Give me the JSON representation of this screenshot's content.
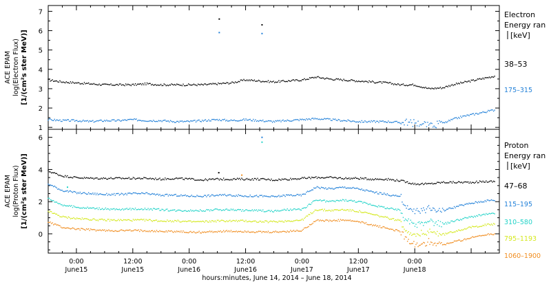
{
  "chart_data": [
    {
      "type": "scatter",
      "name": "electron-panel",
      "ylabel_lines": [
        "ACE EPAM",
        "log(Electron Flux)",
        "[1/(cm²s ster MeV)]"
      ],
      "ylim": [
        0.9,
        7.3
      ],
      "yticks": [
        1,
        2,
        3,
        4,
        5,
        6,
        7
      ],
      "xlim": [
        0,
        96
      ],
      "legend_title": [
        "Electron",
        "Energy ran",
        "[keV]"
      ],
      "series": [
        {
          "name": "38–53",
          "color": "#000000",
          "x": [
            0,
            3,
            6,
            9,
            12,
            15,
            18,
            21,
            24,
            27,
            30,
            33,
            36,
            39,
            42,
            45,
            48,
            51,
            54,
            57,
            60,
            63,
            66,
            69,
            72,
            75,
            78,
            81,
            84,
            86,
            88,
            90,
            92,
            94,
            95
          ],
          "values": [
            3.45,
            3.35,
            3.3,
            3.25,
            3.2,
            3.2,
            3.2,
            3.25,
            3.2,
            3.2,
            3.2,
            3.2,
            3.25,
            3.3,
            3.45,
            3.4,
            3.35,
            3.4,
            3.45,
            3.6,
            3.5,
            3.45,
            3.4,
            3.35,
            3.3,
            3.2,
            3.2,
            3.0,
            3.05,
            3.2,
            3.3,
            3.4,
            3.5,
            3.6,
            3.65
          ]
        },
        {
          "name": "175–315",
          "color": "#1f7fd8",
          "x": [
            0,
            3,
            6,
            9,
            12,
            15,
            18,
            21,
            24,
            27,
            30,
            33,
            36,
            39,
            42,
            45,
            48,
            51,
            54,
            57,
            60,
            63,
            66,
            69,
            72,
            75,
            78,
            81,
            84,
            86,
            88,
            90,
            92,
            94,
            95
          ],
          "values": [
            1.4,
            1.35,
            1.35,
            1.3,
            1.35,
            1.35,
            1.4,
            1.35,
            1.35,
            1.3,
            1.3,
            1.35,
            1.4,
            1.35,
            1.4,
            1.35,
            1.3,
            1.35,
            1.4,
            1.45,
            1.4,
            1.35,
            1.3,
            1.3,
            1.3,
            1.25,
            1.25,
            1.1,
            1.2,
            1.4,
            1.55,
            1.65,
            1.75,
            1.85,
            1.9
          ]
        }
      ],
      "outliers": [
        {
          "x": 36.4,
          "y": 6.6,
          "color": "#000000"
        },
        {
          "x": 36.4,
          "y": 5.9,
          "color": "#1f7fd8"
        },
        {
          "x": 45.5,
          "y": 6.3,
          "color": "#000000"
        },
        {
          "x": 45.5,
          "y": 5.85,
          "color": "#1f7fd8"
        }
      ]
    },
    {
      "type": "scatter",
      "name": "proton-panel",
      "ylabel_lines": [
        "ACE EPAM",
        "log(Proton Flux)",
        "[1/(cm²s ster MeV)]"
      ],
      "ylim": [
        -1.2,
        6.5
      ],
      "yticks": [
        0,
        2,
        4,
        6
      ],
      "xlim": [
        0,
        96
      ],
      "legend_title": [
        "Proton",
        "Energy ran",
        "[keV]"
      ],
      "series": [
        {
          "name": "47–68",
          "color": "#000000",
          "x": [
            0,
            3,
            6,
            9,
            12,
            15,
            18,
            21,
            24,
            27,
            30,
            33,
            36,
            39,
            42,
            45,
            48,
            51,
            54,
            57,
            60,
            63,
            66,
            69,
            72,
            75,
            78,
            81,
            84,
            87,
            90,
            93,
            95
          ],
          "values": [
            3.9,
            3.6,
            3.5,
            3.45,
            3.45,
            3.45,
            3.45,
            3.45,
            3.4,
            3.45,
            3.4,
            3.35,
            3.4,
            3.4,
            3.4,
            3.4,
            3.35,
            3.4,
            3.45,
            3.5,
            3.5,
            3.45,
            3.45,
            3.4,
            3.4,
            3.3,
            3.1,
            3.1,
            3.2,
            3.2,
            3.2,
            3.25,
            3.25
          ]
        },
        {
          "name": "115–195",
          "color": "#1f7fd8",
          "x": [
            0,
            3,
            6,
            9,
            12,
            15,
            18,
            21,
            24,
            27,
            30,
            33,
            36,
            39,
            42,
            45,
            48,
            51,
            54,
            57,
            60,
            63,
            66,
            69,
            72,
            75,
            76,
            78,
            81,
            84,
            87,
            90,
            93,
            95
          ],
          "values": [
            3.1,
            2.7,
            2.55,
            2.5,
            2.45,
            2.45,
            2.5,
            2.5,
            2.4,
            2.4,
            2.35,
            2.35,
            2.4,
            2.4,
            2.35,
            2.35,
            2.3,
            2.4,
            2.4,
            2.9,
            2.8,
            2.9,
            2.8,
            2.6,
            2.45,
            2.3,
            1.7,
            1.4,
            1.55,
            1.45,
            1.7,
            1.9,
            2.05,
            2.1
          ]
        },
        {
          "name": "310–580",
          "color": "#22d3c8",
          "x": [
            0,
            3,
            6,
            9,
            12,
            15,
            18,
            21,
            24,
            27,
            30,
            33,
            36,
            39,
            42,
            45,
            48,
            51,
            54,
            57,
            60,
            63,
            66,
            69,
            72,
            75,
            76,
            78,
            81,
            84,
            87,
            90,
            93,
            95
          ],
          "values": [
            2.2,
            1.8,
            1.65,
            1.6,
            1.55,
            1.5,
            1.55,
            1.55,
            1.5,
            1.45,
            1.45,
            1.45,
            1.5,
            1.5,
            1.45,
            1.45,
            1.4,
            1.5,
            1.5,
            2.1,
            2.0,
            2.1,
            2.0,
            1.8,
            1.6,
            1.45,
            0.9,
            0.55,
            0.75,
            0.6,
            0.85,
            1.05,
            1.2,
            1.25
          ]
        },
        {
          "name": "795–1193",
          "color": "#d4e81c",
          "x": [
            0,
            3,
            6,
            9,
            12,
            15,
            18,
            21,
            24,
            27,
            30,
            33,
            36,
            39,
            42,
            45,
            48,
            51,
            54,
            57,
            60,
            63,
            66,
            69,
            72,
            75,
            76,
            78,
            81,
            84,
            87,
            90,
            93,
            95
          ],
          "values": [
            1.4,
            1.05,
            0.95,
            0.9,
            0.85,
            0.85,
            0.85,
            0.85,
            0.8,
            0.8,
            0.75,
            0.75,
            0.8,
            0.8,
            0.8,
            0.75,
            0.75,
            0.8,
            0.85,
            1.5,
            1.45,
            1.5,
            1.4,
            1.2,
            1.0,
            0.8,
            0.3,
            -0.05,
            0.1,
            -0.05,
            0.2,
            0.4,
            0.55,
            0.6
          ]
        },
        {
          "name": "1060–1900",
          "color": "#f08c1e",
          "x": [
            0,
            3,
            6,
            9,
            12,
            15,
            18,
            21,
            24,
            27,
            30,
            33,
            36,
            39,
            42,
            45,
            48,
            51,
            54,
            57,
            60,
            63,
            66,
            69,
            72,
            75,
            76,
            78,
            81,
            84,
            87,
            90,
            93,
            95
          ],
          "values": [
            0.75,
            0.4,
            0.3,
            0.25,
            0.2,
            0.2,
            0.2,
            0.2,
            0.15,
            0.15,
            0.1,
            0.1,
            0.15,
            0.15,
            0.15,
            0.1,
            0.1,
            0.15,
            0.2,
            0.85,
            0.8,
            0.85,
            0.75,
            0.55,
            0.35,
            0.15,
            -0.3,
            -0.65,
            -0.5,
            -0.7,
            -0.45,
            -0.25,
            -0.05,
            0.0
          ]
        }
      ],
      "outliers": [
        {
          "x": 45.5,
          "y": 6.0,
          "color": "#1f7fd8"
        },
        {
          "x": 45.5,
          "y": 5.7,
          "color": "#22d3c8"
        },
        {
          "x": 41.2,
          "y": 3.65,
          "color": "#f08c1e"
        },
        {
          "x": 36.3,
          "y": 3.8,
          "color": "#000000"
        },
        {
          "x": 4.1,
          "y": 2.9,
          "color": "#22d3c8"
        }
      ]
    }
  ],
  "x_axis": {
    "ticks": [
      {
        "x": 6,
        "time": "0:00",
        "date": "June15"
      },
      {
        "x": 18,
        "time": "12:00",
        "date": "June15"
      },
      {
        "x": 30,
        "time": "0:00",
        "date": "June16"
      },
      {
        "x": 42,
        "time": "12:00",
        "date": "June16"
      },
      {
        "x": 54,
        "time": "0:00",
        "date": "June17"
      },
      {
        "x": 66,
        "time": "12:00",
        "date": "June17"
      },
      {
        "x": 78,
        "time": "0:00",
        "date": "June18"
      }
    ],
    "xlabel": "hours:minutes, June 14, 2014 – June 18, 2014"
  }
}
